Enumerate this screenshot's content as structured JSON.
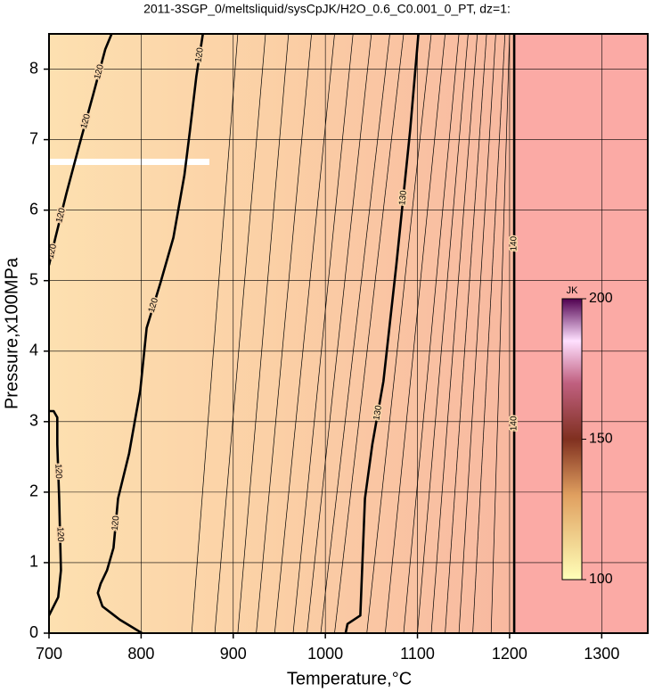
{
  "chart_data": {
    "type": "contour",
    "title": "2011-3SGP_0/meltsliquid/sysCpJK/H2O_0.6_C0.001_0_PT, dz=1:",
    "x_label": "Temperature,°C",
    "y_label": "Pressure,x100MPa",
    "xlim": [
      700,
      1350
    ],
    "ylim": [
      0,
      8.5
    ],
    "xticks": [
      700,
      800,
      900,
      1000,
      1100,
      1200,
      1300
    ],
    "yticks": [
      0,
      1,
      2,
      3,
      4,
      5,
      6,
      7,
      8
    ],
    "grid": true,
    "colorbar": {
      "label": "JK",
      "lim": [
        100,
        200
      ],
      "ticks": [
        100,
        150,
        200
      ]
    },
    "contours": [
      {
        "level": 120,
        "major": true,
        "x": [
          700,
          710,
          713,
          711,
          709,
          709,
          705,
          700
        ],
        "y": [
          0.25,
          0.51,
          0.89,
          1.91,
          2.68,
          3.06,
          3.15,
          3.15
        ]
      },
      {
        "level": 120,
        "major": true,
        "x": [
          700,
          707,
          719,
          732,
          748,
          761,
          768
        ],
        "y": [
          5.22,
          5.61,
          6.24,
          6.88,
          7.64,
          8.28,
          8.5
        ]
      },
      {
        "level": 120,
        "major": true,
        "x": [
          801,
          777,
          758,
          753,
          756,
          763,
          770,
          775,
          787,
          799,
          806,
          821,
          835,
          847,
          853,
          860,
          867
        ],
        "y": [
          0,
          0.19,
          0.38,
          0.57,
          0.7,
          0.89,
          1.21,
          1.91,
          2.55,
          3.44,
          4.33,
          4.97,
          5.61,
          6.5,
          7.13,
          7.9,
          8.5
        ]
      },
      {
        "level": 130,
        "major": true,
        "x": [
          1022,
          1024,
          1038,
          1043,
          1051,
          1063,
          1077,
          1092,
          1101
        ],
        "y": [
          0,
          0.13,
          0.25,
          1.91,
          2.68,
          3.57,
          5.22,
          7.13,
          8.5
        ]
      },
      {
        "level": 140,
        "major": true,
        "x": [
          1205,
          1205
        ],
        "y": [
          0,
          8.5
        ]
      },
      {
        "level": 121,
        "major": false,
        "x": [
          855,
          905
        ],
        "y": [
          0,
          8.5
        ]
      },
      {
        "level": 122,
        "major": false,
        "x": [
          880,
          935
        ],
        "y": [
          0,
          8.5
        ]
      },
      {
        "level": 123,
        "major": false,
        "x": [
          905,
          960
        ],
        "y": [
          0,
          8.5
        ]
      },
      {
        "level": 124,
        "major": false,
        "x": [
          925,
          985
        ],
        "y": [
          0,
          8.5
        ]
      },
      {
        "level": 125,
        "major": false,
        "x": [
          945,
          1010
        ],
        "y": [
          0,
          8.5
        ]
      },
      {
        "level": 126,
        "major": false,
        "x": [
          965,
          1030
        ],
        "y": [
          0,
          8.5
        ]
      },
      {
        "level": 127,
        "major": false,
        "x": [
          980,
          1050
        ],
        "y": [
          0,
          8.5
        ]
      },
      {
        "level": 128,
        "major": false,
        "x": [
          995,
          1070
        ],
        "y": [
          0,
          8.5
        ]
      },
      {
        "level": 129,
        "major": false,
        "x": [
          1010,
          1085
        ],
        "y": [
          0,
          8.5
        ]
      },
      {
        "level": 131,
        "major": false,
        "x": [
          1045,
          1115
        ],
        "y": [
          0,
          8.5
        ]
      },
      {
        "level": 132,
        "major": false,
        "x": [
          1065,
          1130
        ],
        "y": [
          0,
          8.5
        ]
      },
      {
        "level": 133,
        "major": false,
        "x": [
          1085,
          1145
        ],
        "y": [
          0,
          8.5
        ]
      },
      {
        "level": 134,
        "major": false,
        "x": [
          1100,
          1155
        ],
        "y": [
          0,
          8.5
        ]
      },
      {
        "level": 135,
        "major": false,
        "x": [
          1115,
          1165
        ],
        "y": [
          0,
          8.5
        ]
      },
      {
        "level": 136,
        "major": false,
        "x": [
          1130,
          1175
        ],
        "y": [
          0,
          8.5
        ]
      },
      {
        "level": 137,
        "major": false,
        "x": [
          1145,
          1185
        ],
        "y": [
          0,
          8.5
        ]
      },
      {
        "level": 138,
        "major": false,
        "x": [
          1160,
          1195
        ],
        "y": [
          0,
          8.5
        ]
      },
      {
        "level": 139,
        "major": false,
        "x": [
          1180,
          1200
        ],
        "y": [
          0,
          8.5
        ]
      }
    ]
  }
}
